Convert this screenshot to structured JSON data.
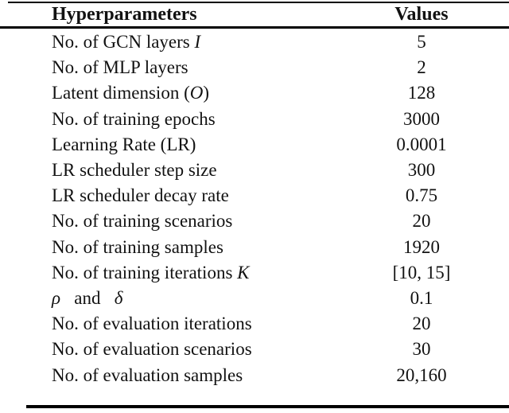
{
  "table": {
    "header": {
      "col1": "Hyperparameters",
      "col2": "Values"
    },
    "rows": [
      {
        "label": [
          {
            "t": "No. of GCN layers ",
            "i": false
          },
          {
            "t": "I",
            "i": true
          }
        ],
        "value": "5"
      },
      {
        "label": [
          {
            "t": "No. of MLP layers",
            "i": false
          }
        ],
        "value": "2"
      },
      {
        "label": [
          {
            "t": "Latent dimension (",
            "i": false
          },
          {
            "t": "O",
            "i": true
          },
          {
            "t": ")",
            "i": false
          }
        ],
        "value": "128"
      },
      {
        "label": [
          {
            "t": "No. of training epochs",
            "i": false
          }
        ],
        "value": "3000"
      },
      {
        "label": [
          {
            "t": "Learning Rate (LR)",
            "i": false
          }
        ],
        "value": "0.0001"
      },
      {
        "label": [
          {
            "t": "LR scheduler step size",
            "i": false
          }
        ],
        "value": "300"
      },
      {
        "label": [
          {
            "t": "LR scheduler decay rate",
            "i": false
          }
        ],
        "value": "0.75"
      },
      {
        "label": [
          {
            "t": "No. of training scenarios",
            "i": false
          }
        ],
        "value": "20"
      },
      {
        "label": [
          {
            "t": "No. of training samples",
            "i": false
          }
        ],
        "value": "1920"
      },
      {
        "label": [
          {
            "t": "No. of training iterations ",
            "i": false
          },
          {
            "t": "K",
            "i": true
          }
        ],
        "value": "[10, 15]"
      },
      {
        "label": [
          {
            "t": "ρ",
            "i": true
          },
          {
            "t": "   and   ",
            "i": false
          },
          {
            "t": "δ",
            "i": true
          }
        ],
        "value": "0.1"
      },
      {
        "label": [
          {
            "t": "No. of evaluation iterations",
            "i": false
          }
        ],
        "value": "20"
      },
      {
        "label": [
          {
            "t": "No. of evaluation scenarios",
            "i": false
          }
        ],
        "value": "30"
      },
      {
        "label": [
          {
            "t": "No. of evaluation samples",
            "i": false
          }
        ],
        "value": "20,160"
      }
    ],
    "colors": {
      "text": "#121212",
      "rule": "#000000",
      "background": "#ffffff"
    }
  }
}
